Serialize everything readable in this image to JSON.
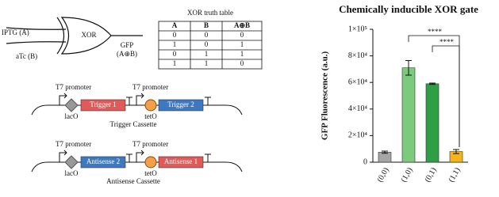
{
  "gate": {
    "inputs": [
      "IPTG (A)",
      "aTc (B)"
    ],
    "label": "XOR",
    "output": [
      "GFP",
      "(A⊕B)"
    ]
  },
  "truth_table": {
    "title": "XOR truth table",
    "header": [
      "A",
      "B",
      "A⊕B"
    ],
    "rows": [
      [
        "0",
        "0",
        "0"
      ],
      [
        "1",
        "0",
        "1"
      ],
      [
        "0",
        "1",
        "1"
      ],
      [
        "1",
        "1",
        "0"
      ]
    ]
  },
  "trigger_cassette": {
    "promoters": [
      "T7 promoter",
      "T7 promoter"
    ],
    "operators": [
      "lacO",
      "tetO"
    ],
    "genes": [
      "Trigger 1",
      "Trigger 2"
    ],
    "caption": "Trigger Cassette"
  },
  "antisense_cassette": {
    "promoters": [
      "T7 promoter",
      "T7 promoter"
    ],
    "operators": [
      "lacO",
      "tetO"
    ],
    "genes": [
      "Antisense 2",
      "Antisense 1"
    ],
    "caption": "Antisense Cassette"
  },
  "chart_data": {
    "type": "bar",
    "title": "Chemically inducible XOR gate",
    "y_label": "GFP Fluorescence (a.u.)",
    "categories": [
      "(0,0)",
      "(1,0)",
      "(0,1)",
      "(1,1)"
    ],
    "values": [
      7500,
      71000,
      59000,
      8000
    ],
    "errors": [
      800,
      5500,
      500,
      1500
    ],
    "colors": [
      "#a6a6a6",
      "#7ccb7c",
      "#2f9e44",
      "#f4b41a"
    ],
    "ylim": [
      0,
      100000
    ],
    "yticks": [
      0,
      {
        "value": 20000,
        "label": "2×10⁴"
      },
      {
        "value": 40000,
        "label": "4×10⁴"
      },
      {
        "value": 60000,
        "label": "6×10⁴"
      },
      {
        "value": 80000,
        "label": "8×10⁴"
      },
      {
        "value": 100000,
        "label": "1×10⁵"
      }
    ],
    "significance": [
      "****",
      "****"
    ]
  }
}
